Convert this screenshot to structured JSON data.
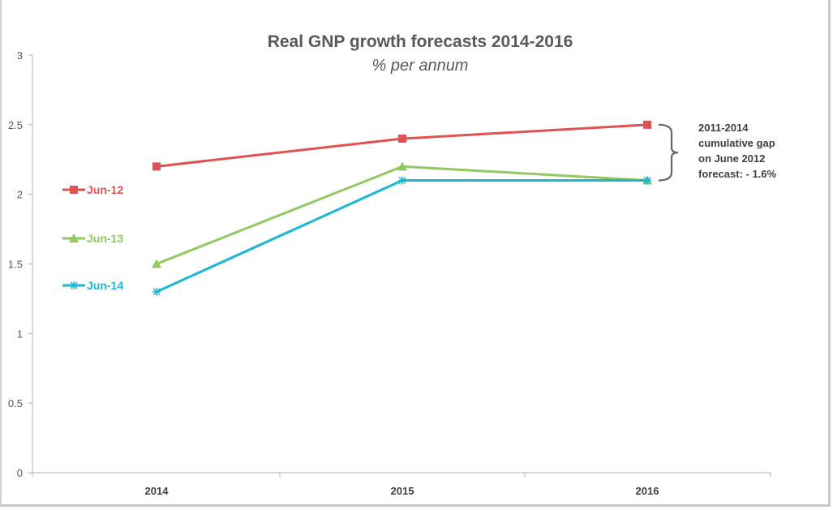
{
  "chart_data": {
    "type": "line",
    "title": "Real GNP growth forecasts 2014-2016",
    "subtitle": "% per annum",
    "xlabel": "",
    "ylabel": "",
    "categories": [
      "2014",
      "2015",
      "2016"
    ],
    "ylim": [
      0,
      3
    ],
    "yticks": [
      "0",
      "0.5",
      "1",
      "1.5",
      "2",
      "2.5",
      "3"
    ],
    "ytick_values": [
      0,
      0.5,
      1,
      1.5,
      2,
      2.5,
      3
    ],
    "grid": false,
    "legend_placement": "left",
    "series": [
      {
        "name": "Jun-12",
        "values": [
          2.2,
          2.4,
          2.5
        ],
        "color": "#e05252",
        "marker": "square"
      },
      {
        "name": "Jun-13",
        "values": [
          1.5,
          2.2,
          2.1
        ],
        "color": "#92c862",
        "marker": "triangle"
      },
      {
        "name": "Jun-14",
        "values": [
          1.3,
          2.1,
          2.1
        ],
        "color": "#1ab7d4",
        "marker": "star"
      }
    ],
    "annotation": {
      "lines": [
        "2011-2014",
        "cumulative gap",
        "on June 2012",
        "forecast: - 1.6%"
      ],
      "bracket_from": 2.1,
      "bracket_to": 2.5,
      "category": "2016"
    }
  }
}
